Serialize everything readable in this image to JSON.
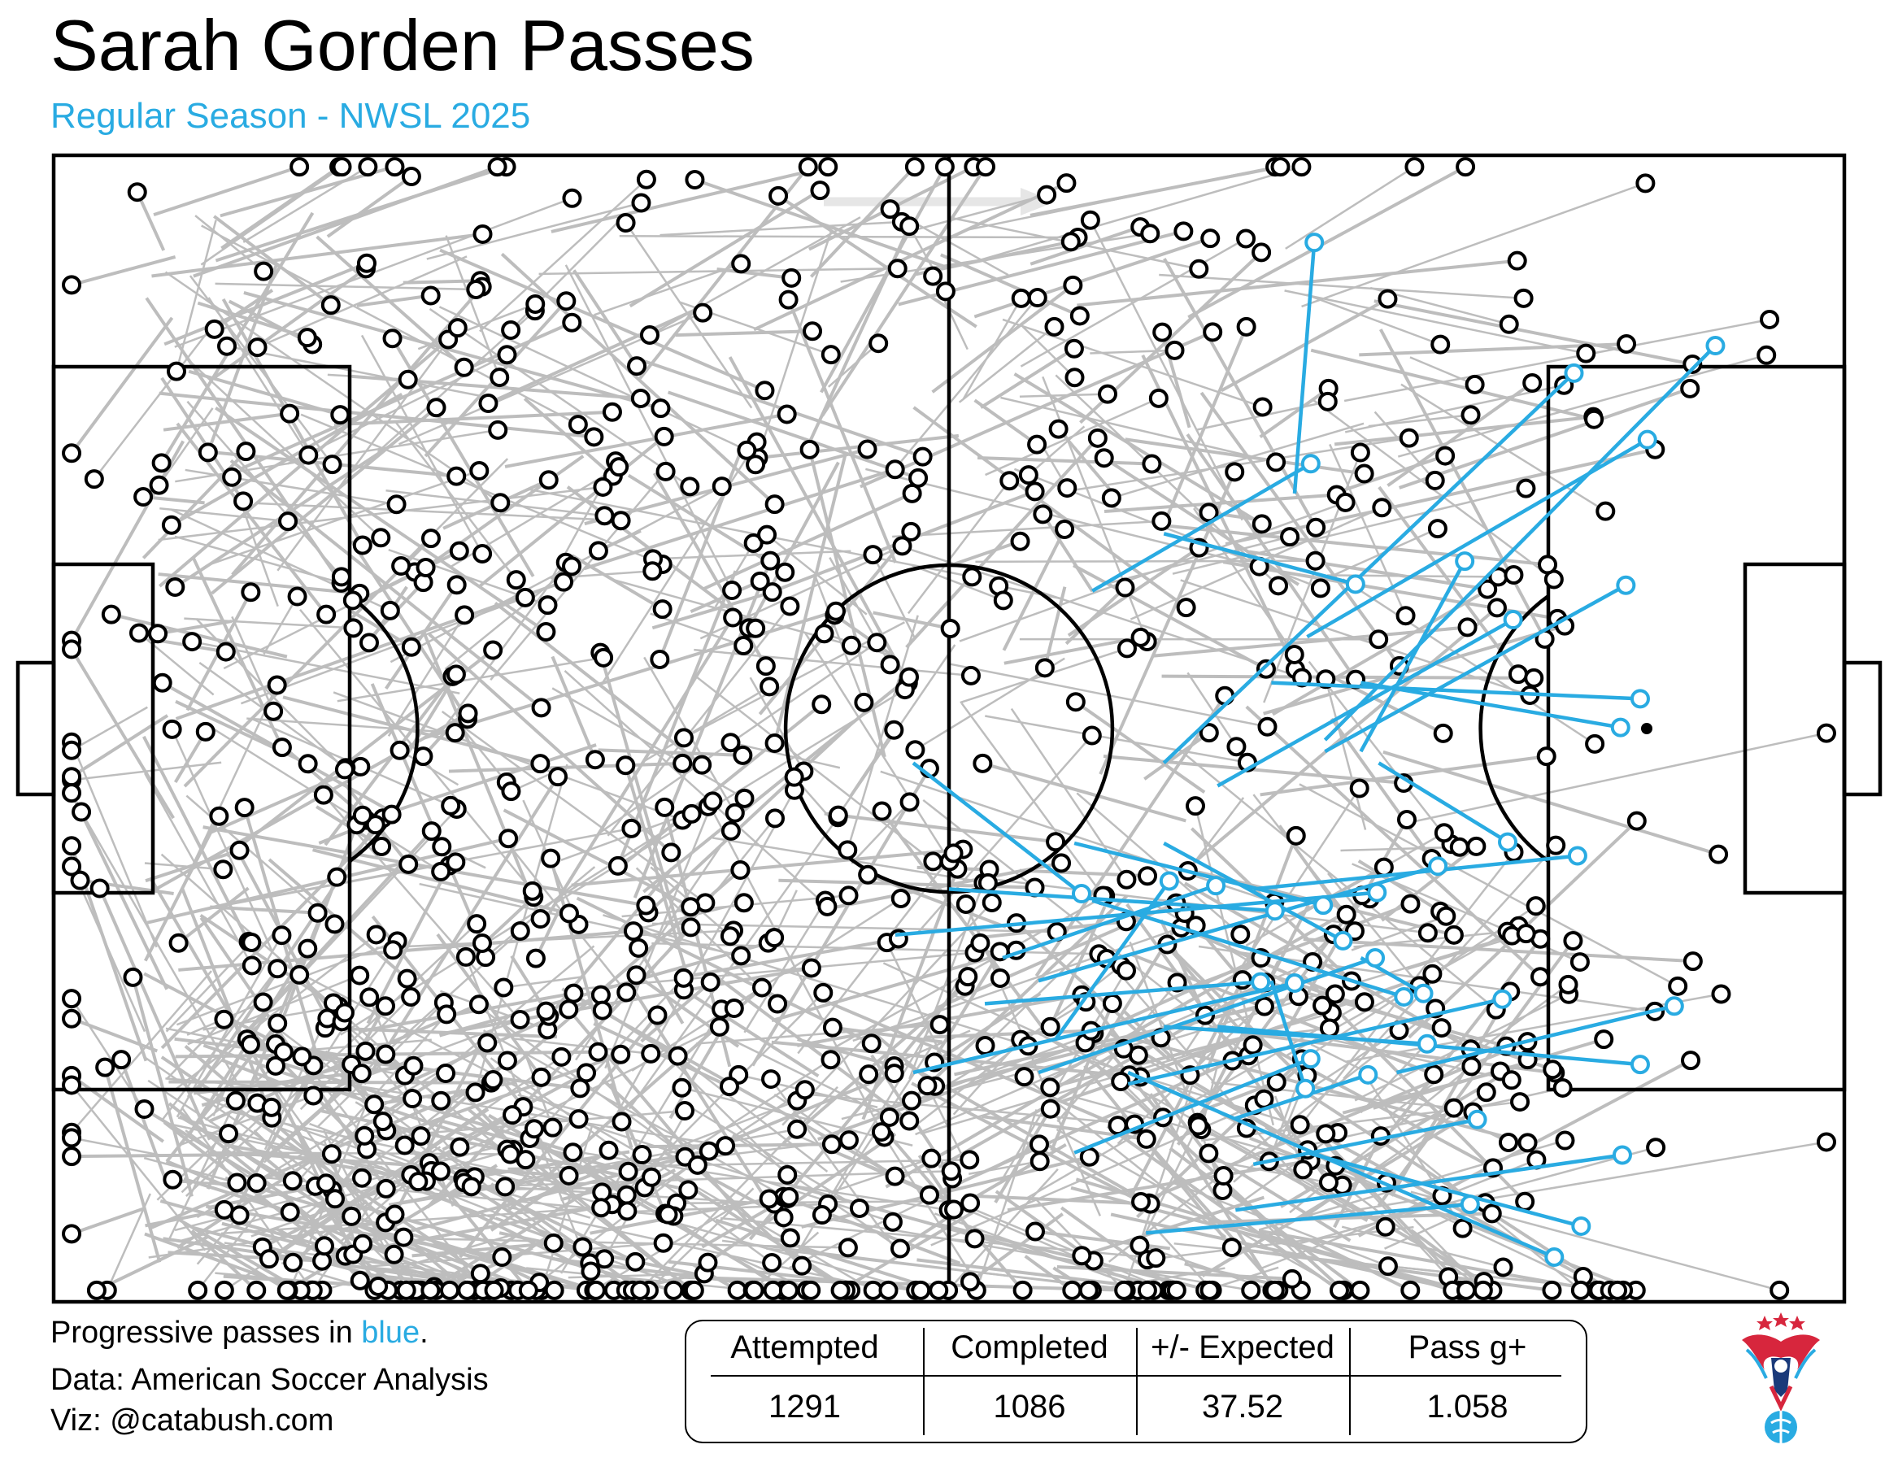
{
  "title": "Sarah Gorden Passes",
  "subtitle": "Regular Season - NWSL 2025",
  "notes": {
    "progressive_prefix": "Progressive passes in ",
    "progressive_blue": "blue",
    "progressive_suffix": ".",
    "data_source": "Data: American Soccer Analysis",
    "viz_credit": "Viz: @catabush.com"
  },
  "stats": {
    "attempted_label": "Attempted",
    "attempted_value": "1291",
    "completed_label": "Completed",
    "completed_value": "1086",
    "expected_label": "+/- Expected",
    "expected_value": "37.52",
    "passg_label": "Pass g+",
    "passg_value": "1.058"
  },
  "colors": {
    "progressive": "#29abe2",
    "regular": "#bdbdbd",
    "pitch_lines": "#000000",
    "direction_arrow": "#e6e6e6"
  },
  "logo_icon": "eagle-soccer-logo-icon",
  "chart_data": {
    "type": "scatter",
    "description_units": "pitch coordinates: x 0-100 (own goal to opponent goal), y 0-100 (bottom touchline to top touchline)",
    "xlim": [
      0,
      100
    ],
    "ylim": [
      0,
      100
    ],
    "attack_direction": "left-to-right",
    "legend": "none",
    "totals": {
      "attempted": 1291,
      "completed": 1086,
      "expected_diff": 37.52,
      "pass_g_plus": 1.058
    },
    "progressive_passes": [
      {
        "x1": 69.3,
        "y1": 70.5,
        "x2": 70.4,
        "y2": 92.4
      },
      {
        "x1": 62.0,
        "y1": 47.0,
        "x2": 84.9,
        "y2": 81.0
      },
      {
        "x1": 71.0,
        "y1": 49.0,
        "x2": 92.8,
        "y2": 83.4
      },
      {
        "x1": 58.0,
        "y1": 62.0,
        "x2": 70.2,
        "y2": 73.1
      },
      {
        "x1": 70.0,
        "y1": 58.0,
        "x2": 89.0,
        "y2": 75.2
      },
      {
        "x1": 73.0,
        "y1": 48.0,
        "x2": 78.8,
        "y2": 64.6
      },
      {
        "x1": 62.0,
        "y1": 67.0,
        "x2": 72.7,
        "y2": 62.6
      },
      {
        "x1": 65.0,
        "y1": 45.0,
        "x2": 81.5,
        "y2": 59.5
      },
      {
        "x1": 71.0,
        "y1": 48.0,
        "x2": 87.8,
        "y2": 62.5
      },
      {
        "x1": 68.0,
        "y1": 54.0,
        "x2": 88.6,
        "y2": 52.6
      },
      {
        "x1": 73.0,
        "y1": 54.0,
        "x2": 87.5,
        "y2": 50.1
      },
      {
        "x1": 74.0,
        "y1": 47.0,
        "x2": 81.2,
        "y2": 40.1
      },
      {
        "x1": 67.0,
        "y1": 36.0,
        "x2": 85.1,
        "y2": 38.9
      },
      {
        "x1": 47.0,
        "y1": 32.0,
        "x2": 73.9,
        "y2": 35.7
      },
      {
        "x1": 56.0,
        "y1": 23.0,
        "x2": 62.3,
        "y2": 36.7
      },
      {
        "x1": 55.0,
        "y1": 28.0,
        "x2": 77.3,
        "y2": 38.0
      },
      {
        "x1": 48.0,
        "y1": 20.0,
        "x2": 69.3,
        "y2": 27.8
      },
      {
        "x1": 55.0,
        "y1": 20.0,
        "x2": 73.8,
        "y2": 30.0
      },
      {
        "x1": 60.0,
        "y1": 19.0,
        "x2": 80.9,
        "y2": 26.4
      },
      {
        "x1": 62.0,
        "y1": 24.0,
        "x2": 76.7,
        "y2": 22.5
      },
      {
        "x1": 66.0,
        "y1": 16.0,
        "x2": 73.4,
        "y2": 19.8
      },
      {
        "x1": 57.0,
        "y1": 13.0,
        "x2": 70.2,
        "y2": 21.2
      },
      {
        "x1": 67.0,
        "y1": 12.0,
        "x2": 79.5,
        "y2": 15.9
      },
      {
        "x1": 61.0,
        "y1": 6.0,
        "x2": 79.1,
        "y2": 8.5
      },
      {
        "x1": 60.0,
        "y1": 20.0,
        "x2": 83.8,
        "y2": 3.9
      },
      {
        "x1": 70.0,
        "y1": 13.0,
        "x2": 85.3,
        "y2": 6.6
      },
      {
        "x1": 66.0,
        "y1": 8.0,
        "x2": 87.6,
        "y2": 12.8
      },
      {
        "x1": 75.0,
        "y1": 20.0,
        "x2": 90.5,
        "y2": 25.8
      },
      {
        "x1": 65.0,
        "y1": 24.0,
        "x2": 88.6,
        "y2": 20.7
      },
      {
        "x1": 68.0,
        "y1": 28.0,
        "x2": 69.9,
        "y2": 18.6
      },
      {
        "x1": 73.0,
        "y1": 30.0,
        "x2": 76.5,
        "y2": 26.9
      },
      {
        "x1": 58.0,
        "y1": 35.0,
        "x2": 75.4,
        "y2": 26.6
      },
      {
        "x1": 62.0,
        "y1": 40.0,
        "x2": 72.0,
        "y2": 31.5
      },
      {
        "x1": 50.0,
        "y1": 36.0,
        "x2": 68.2,
        "y2": 34.1
      },
      {
        "x1": 53.0,
        "y1": 30.0,
        "x2": 64.9,
        "y2": 36.3
      },
      {
        "x1": 52.0,
        "y1": 26.0,
        "x2": 67.4,
        "y2": 27.9
      },
      {
        "x1": 57.0,
        "y1": 40.0,
        "x2": 70.9,
        "y2": 34.6
      },
      {
        "x1": 48.0,
        "y1": 47.0,
        "x2": 57.4,
        "y2": 35.6
      }
    ]
  }
}
